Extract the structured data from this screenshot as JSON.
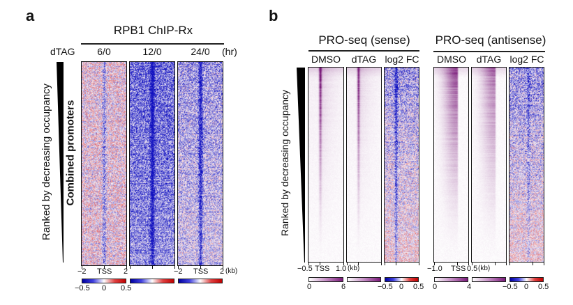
{
  "panel_a": {
    "letter": "a",
    "title": "RPB1 ChIP-Rx",
    "condition_label": "dTAG",
    "unit_label": "(hr)",
    "row_label": "Ranked by decreasing occupancy",
    "group_label": "Combined promoters",
    "columns": [
      {
        "label": "6/0",
        "type": "diverging",
        "change_level": 0.2
      },
      {
        "label": "12/0",
        "type": "diverging",
        "change_level": 0.75
      },
      {
        "label": "24/0",
        "type": "diverging",
        "change_level": 0.55
      }
    ],
    "x_axis": {
      "ticks": [
        "−2",
        "TSS",
        "2"
      ],
      "unit": "(kb)",
      "range_kb": [
        -2,
        2
      ]
    },
    "colorbar": {
      "min": "−0.5",
      "mid": "0",
      "max": "0.5",
      "low_color": "#0000a0",
      "mid_color": "#ffffff",
      "high_color": "#c00000"
    }
  },
  "panel_b": {
    "letter": "b",
    "row_label": "Ranked by decreasing occupancy",
    "groups": [
      {
        "title": "PRO-seq (sense)",
        "columns": [
          {
            "label": "DMSO",
            "type": "sequential"
          },
          {
            "label": "dTAG",
            "type": "sequential"
          },
          {
            "label": "log2 FC",
            "type": "diverging"
          }
        ],
        "x_axis": {
          "ticks": [
            "−0.5",
            "TSS",
            "1.0"
          ],
          "unit": "(kb)",
          "range_kb": [
            -0.5,
            1.0
          ]
        },
        "seq_colorbar": {
          "min": "0",
          "max": "6"
        },
        "div_colorbar": {
          "min": "−0.5",
          "mid": "0",
          "max": "0.5"
        }
      },
      {
        "title": "PRO-seq (antisense)",
        "columns": [
          {
            "label": "DMSO",
            "type": "sequential"
          },
          {
            "label": "dTAG",
            "type": "sequential"
          },
          {
            "label": "log2 FC",
            "type": "diverging"
          }
        ],
        "x_axis": {
          "ticks": [
            "−1.0",
            "TSS",
            "0.5"
          ],
          "unit": "(kb)",
          "range_kb": [
            -1.0,
            0.5
          ]
        },
        "seq_colorbar": {
          "min": "0",
          "max": "4"
        },
        "div_colorbar": {
          "min": "−0.5",
          "mid": "0",
          "max": "0.5"
        }
      }
    ],
    "colors": {
      "seq_low": "#ffffff",
      "seq_high": "#7a1a7a",
      "div_low": "#0000a0",
      "div_mid": "#ffffff",
      "div_high": "#c00000"
    }
  }
}
